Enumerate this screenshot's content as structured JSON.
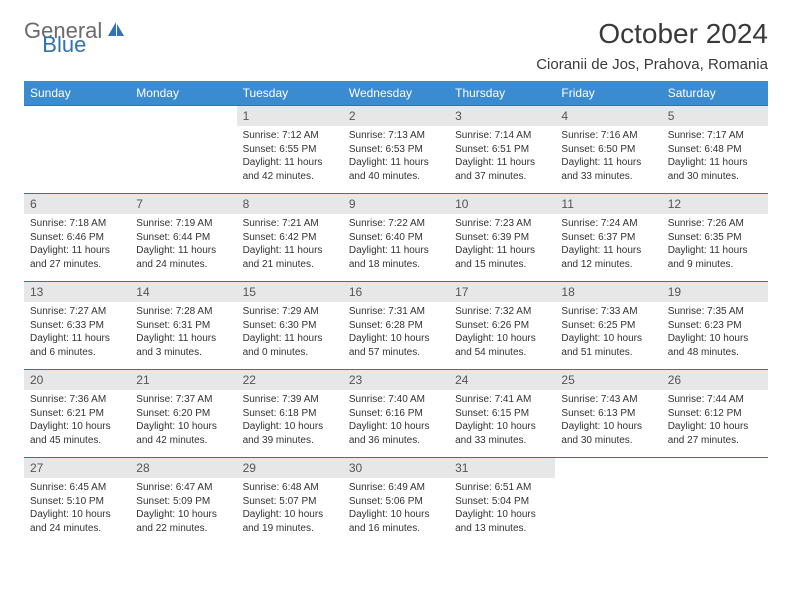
{
  "brand": {
    "part1": "General",
    "part2": "Blue"
  },
  "title": "October 2024",
  "location": "Cioranii de Jos, Prahova, Romania",
  "style": {
    "header_bg": "#3b8bd0",
    "header_fg": "#ffffff",
    "daynum_bg": "#e7e7e7",
    "border_color": "#2f72b5",
    "body_text": "#333333",
    "title_color": "#3a3a3a",
    "logo_gray": "#6b6b6b",
    "logo_blue": "#2f72b5",
    "font_family": "Arial",
    "month_fontsize": 28,
    "location_fontsize": 15,
    "weekday_fontsize": 12,
    "body_fontsize": 10
  },
  "weekdays": [
    "Sunday",
    "Monday",
    "Tuesday",
    "Wednesday",
    "Thursday",
    "Friday",
    "Saturday"
  ],
  "weeks": [
    [
      null,
      null,
      {
        "n": "1",
        "sunrise": "Sunrise: 7:12 AM",
        "sunset": "Sunset: 6:55 PM",
        "daylight": "Daylight: 11 hours and 42 minutes."
      },
      {
        "n": "2",
        "sunrise": "Sunrise: 7:13 AM",
        "sunset": "Sunset: 6:53 PM",
        "daylight": "Daylight: 11 hours and 40 minutes."
      },
      {
        "n": "3",
        "sunrise": "Sunrise: 7:14 AM",
        "sunset": "Sunset: 6:51 PM",
        "daylight": "Daylight: 11 hours and 37 minutes."
      },
      {
        "n": "4",
        "sunrise": "Sunrise: 7:16 AM",
        "sunset": "Sunset: 6:50 PM",
        "daylight": "Daylight: 11 hours and 33 minutes."
      },
      {
        "n": "5",
        "sunrise": "Sunrise: 7:17 AM",
        "sunset": "Sunset: 6:48 PM",
        "daylight": "Daylight: 11 hours and 30 minutes."
      }
    ],
    [
      {
        "n": "6",
        "sunrise": "Sunrise: 7:18 AM",
        "sunset": "Sunset: 6:46 PM",
        "daylight": "Daylight: 11 hours and 27 minutes."
      },
      {
        "n": "7",
        "sunrise": "Sunrise: 7:19 AM",
        "sunset": "Sunset: 6:44 PM",
        "daylight": "Daylight: 11 hours and 24 minutes."
      },
      {
        "n": "8",
        "sunrise": "Sunrise: 7:21 AM",
        "sunset": "Sunset: 6:42 PM",
        "daylight": "Daylight: 11 hours and 21 minutes."
      },
      {
        "n": "9",
        "sunrise": "Sunrise: 7:22 AM",
        "sunset": "Sunset: 6:40 PM",
        "daylight": "Daylight: 11 hours and 18 minutes."
      },
      {
        "n": "10",
        "sunrise": "Sunrise: 7:23 AM",
        "sunset": "Sunset: 6:39 PM",
        "daylight": "Daylight: 11 hours and 15 minutes."
      },
      {
        "n": "11",
        "sunrise": "Sunrise: 7:24 AM",
        "sunset": "Sunset: 6:37 PM",
        "daylight": "Daylight: 11 hours and 12 minutes."
      },
      {
        "n": "12",
        "sunrise": "Sunrise: 7:26 AM",
        "sunset": "Sunset: 6:35 PM",
        "daylight": "Daylight: 11 hours and 9 minutes."
      }
    ],
    [
      {
        "n": "13",
        "sunrise": "Sunrise: 7:27 AM",
        "sunset": "Sunset: 6:33 PM",
        "daylight": "Daylight: 11 hours and 6 minutes."
      },
      {
        "n": "14",
        "sunrise": "Sunrise: 7:28 AM",
        "sunset": "Sunset: 6:31 PM",
        "daylight": "Daylight: 11 hours and 3 minutes."
      },
      {
        "n": "15",
        "sunrise": "Sunrise: 7:29 AM",
        "sunset": "Sunset: 6:30 PM",
        "daylight": "Daylight: 11 hours and 0 minutes."
      },
      {
        "n": "16",
        "sunrise": "Sunrise: 7:31 AM",
        "sunset": "Sunset: 6:28 PM",
        "daylight": "Daylight: 10 hours and 57 minutes."
      },
      {
        "n": "17",
        "sunrise": "Sunrise: 7:32 AM",
        "sunset": "Sunset: 6:26 PM",
        "daylight": "Daylight: 10 hours and 54 minutes."
      },
      {
        "n": "18",
        "sunrise": "Sunrise: 7:33 AM",
        "sunset": "Sunset: 6:25 PM",
        "daylight": "Daylight: 10 hours and 51 minutes."
      },
      {
        "n": "19",
        "sunrise": "Sunrise: 7:35 AM",
        "sunset": "Sunset: 6:23 PM",
        "daylight": "Daylight: 10 hours and 48 minutes."
      }
    ],
    [
      {
        "n": "20",
        "sunrise": "Sunrise: 7:36 AM",
        "sunset": "Sunset: 6:21 PM",
        "daylight": "Daylight: 10 hours and 45 minutes."
      },
      {
        "n": "21",
        "sunrise": "Sunrise: 7:37 AM",
        "sunset": "Sunset: 6:20 PM",
        "daylight": "Daylight: 10 hours and 42 minutes."
      },
      {
        "n": "22",
        "sunrise": "Sunrise: 7:39 AM",
        "sunset": "Sunset: 6:18 PM",
        "daylight": "Daylight: 10 hours and 39 minutes."
      },
      {
        "n": "23",
        "sunrise": "Sunrise: 7:40 AM",
        "sunset": "Sunset: 6:16 PM",
        "daylight": "Daylight: 10 hours and 36 minutes."
      },
      {
        "n": "24",
        "sunrise": "Sunrise: 7:41 AM",
        "sunset": "Sunset: 6:15 PM",
        "daylight": "Daylight: 10 hours and 33 minutes."
      },
      {
        "n": "25",
        "sunrise": "Sunrise: 7:43 AM",
        "sunset": "Sunset: 6:13 PM",
        "daylight": "Daylight: 10 hours and 30 minutes."
      },
      {
        "n": "26",
        "sunrise": "Sunrise: 7:44 AM",
        "sunset": "Sunset: 6:12 PM",
        "daylight": "Daylight: 10 hours and 27 minutes."
      }
    ],
    [
      {
        "n": "27",
        "sunrise": "Sunrise: 6:45 AM",
        "sunset": "Sunset: 5:10 PM",
        "daylight": "Daylight: 10 hours and 24 minutes."
      },
      {
        "n": "28",
        "sunrise": "Sunrise: 6:47 AM",
        "sunset": "Sunset: 5:09 PM",
        "daylight": "Daylight: 10 hours and 22 minutes."
      },
      {
        "n": "29",
        "sunrise": "Sunrise: 6:48 AM",
        "sunset": "Sunset: 5:07 PM",
        "daylight": "Daylight: 10 hours and 19 minutes."
      },
      {
        "n": "30",
        "sunrise": "Sunrise: 6:49 AM",
        "sunset": "Sunset: 5:06 PM",
        "daylight": "Daylight: 10 hours and 16 minutes."
      },
      {
        "n": "31",
        "sunrise": "Sunrise: 6:51 AM",
        "sunset": "Sunset: 5:04 PM",
        "daylight": "Daylight: 10 hours and 13 minutes."
      },
      null,
      null
    ]
  ]
}
